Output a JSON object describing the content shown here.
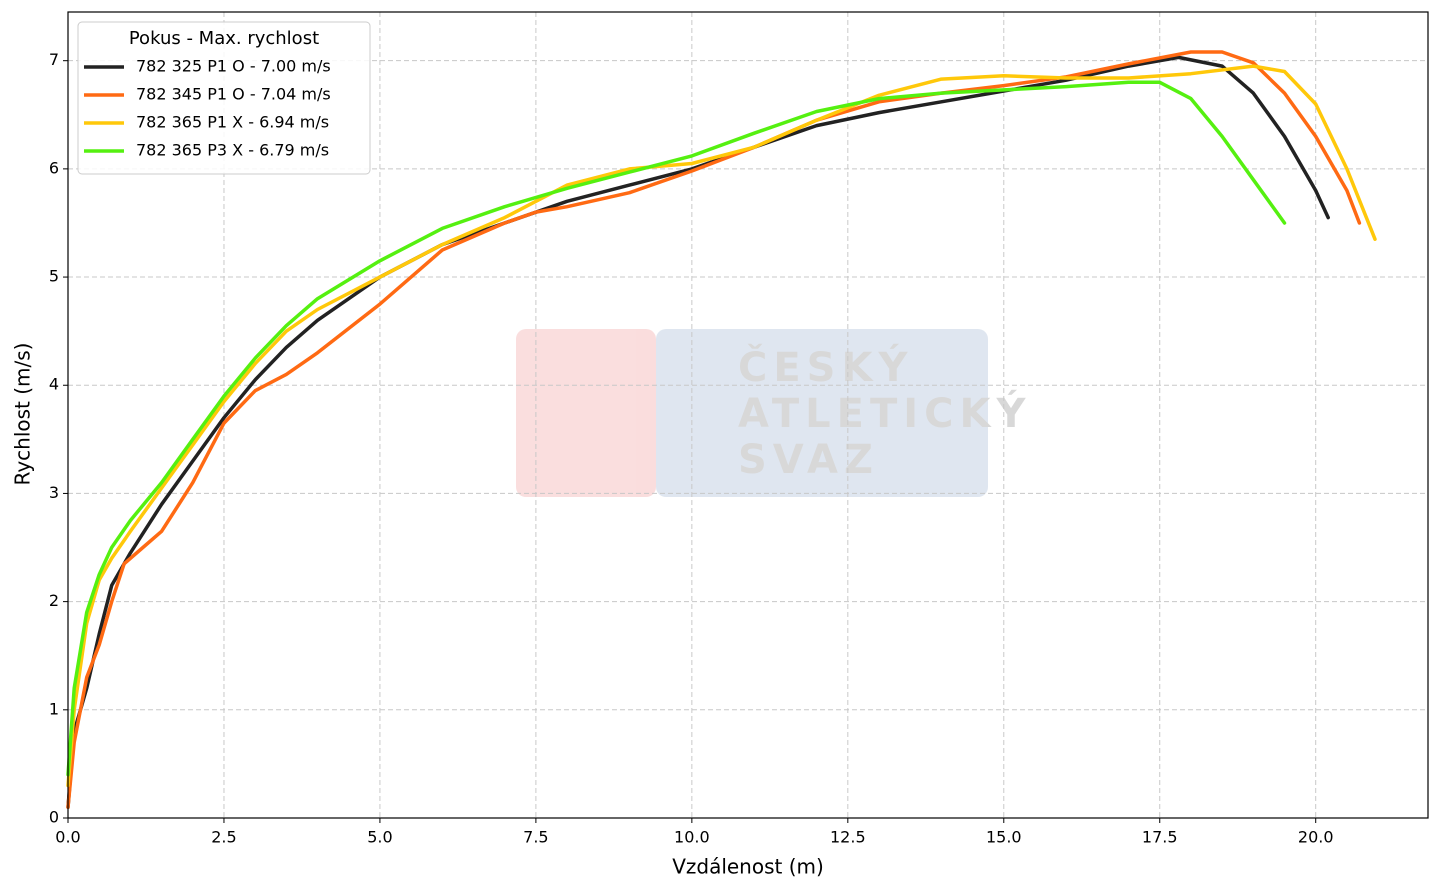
{
  "chart_data": {
    "type": "line",
    "xlabel": "Vzdálenost (m)",
    "ylabel": "Rychlost (m/s)",
    "legend_title": "Pokus - Max. rychlost",
    "legend": "upper left",
    "grid": true,
    "watermark": [
      "ČESKÝ",
      "ATLETICKÝ",
      "SVAZ"
    ],
    "xlim": [
      0,
      21.8
    ],
    "ylim": [
      0,
      7.45
    ],
    "xticks": [
      {
        "value": 0,
        "label": "0.0"
      },
      2.5,
      {
        "value": 5,
        "label": "5.0"
      },
      7.5,
      {
        "value": 10,
        "label": "10.0"
      },
      12.5,
      {
        "value": 15,
        "label": "15.0"
      },
      17.5,
      {
        "value": 20,
        "label": "20.0"
      }
    ],
    "yticks": [
      0,
      1,
      2,
      3,
      4,
      5,
      6,
      7
    ],
    "series": [
      {
        "name": "782 325 P1 O - 7.00 m/s",
        "color": "#222222",
        "x": [
          0,
          0.1,
          0.2,
          0.3,
          0.5,
          0.7,
          1.0,
          1.5,
          2,
          2.5,
          3,
          3.5,
          4,
          5,
          6,
          7,
          8,
          9,
          10,
          11,
          12,
          13,
          14,
          15,
          16,
          17,
          17.8,
          18.5,
          19,
          19.5,
          20,
          20.2
        ],
        "values": [
          0.1,
          0.8,
          1.0,
          1.2,
          1.7,
          2.15,
          2.45,
          2.9,
          3.3,
          3.7,
          4.05,
          4.35,
          4.6,
          5.0,
          5.3,
          5.5,
          5.7,
          5.85,
          6.0,
          6.2,
          6.4,
          6.52,
          6.62,
          6.72,
          6.82,
          6.95,
          7.03,
          6.95,
          6.7,
          6.3,
          5.8,
          5.55
        ]
      },
      {
        "name": "782 345 P1 O - 7.04 m/s",
        "color": "#ff6a13",
        "x": [
          0,
          0.1,
          0.3,
          0.5,
          0.7,
          0.9,
          1.2,
          1.5,
          2,
          2.5,
          3,
          3.5,
          4,
          5,
          6,
          7,
          7.5,
          8,
          9,
          10,
          11,
          12,
          13,
          14,
          15,
          16,
          17,
          18,
          18.5,
          19,
          19.5,
          20,
          20.5,
          20.7
        ],
        "values": [
          0.1,
          0.7,
          1.3,
          1.6,
          2.0,
          2.35,
          2.5,
          2.65,
          3.1,
          3.65,
          3.95,
          4.1,
          4.3,
          4.75,
          5.25,
          5.5,
          5.6,
          5.65,
          5.78,
          5.98,
          6.2,
          6.45,
          6.62,
          6.7,
          6.77,
          6.85,
          6.97,
          7.08,
          7.08,
          6.98,
          6.7,
          6.3,
          5.8,
          5.5
        ]
      },
      {
        "name": "782 365 P1 X - 6.94 m/s",
        "color": "#ffc80a",
        "x": [
          0,
          0.1,
          0.3,
          0.5,
          0.7,
          1.0,
          1.5,
          2,
          2.5,
          3,
          3.5,
          4,
          5,
          6,
          7,
          8,
          9,
          10,
          11,
          12,
          13,
          14,
          15,
          16,
          17,
          18,
          19,
          19.5,
          20,
          20.5,
          20.95
        ],
        "values": [
          0.3,
          1.0,
          1.8,
          2.2,
          2.4,
          2.65,
          3.05,
          3.45,
          3.85,
          4.2,
          4.5,
          4.7,
          5.0,
          5.3,
          5.55,
          5.85,
          6.0,
          6.05,
          6.2,
          6.45,
          6.68,
          6.83,
          6.86,
          6.84,
          6.84,
          6.88,
          6.95,
          6.9,
          6.6,
          6.0,
          5.35
        ]
      },
      {
        "name": "782 365 P3 X - 6.79 m/s",
        "color": "#55f010",
        "x": [
          0,
          0.1,
          0.3,
          0.5,
          0.7,
          1.0,
          1.5,
          2,
          2.5,
          3,
          3.5,
          4,
          5,
          6,
          7,
          8,
          9,
          10,
          11,
          12,
          13,
          14,
          15,
          16,
          17,
          17.5,
          18,
          18.5,
          19,
          19.5
        ],
        "values": [
          0.4,
          1.2,
          1.9,
          2.25,
          2.5,
          2.75,
          3.1,
          3.5,
          3.9,
          4.25,
          4.55,
          4.8,
          5.15,
          5.45,
          5.65,
          5.82,
          5.97,
          6.12,
          6.33,
          6.53,
          6.65,
          6.7,
          6.73,
          6.76,
          6.8,
          6.8,
          6.65,
          6.3,
          5.9,
          5.5
        ]
      }
    ]
  }
}
